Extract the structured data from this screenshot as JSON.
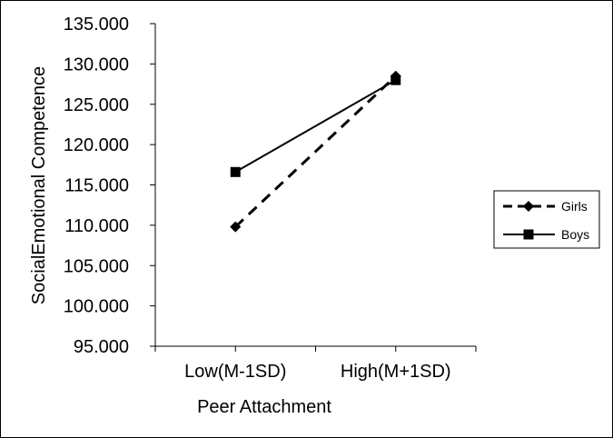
{
  "chart_data": {
    "type": "line",
    "categories": [
      "Low(M-1SD)",
      "High(M+1SD)"
    ],
    "series": [
      {
        "name": "Girls",
        "values": [
          109.8,
          128.5
        ],
        "line_style": "dashed",
        "marker": "diamond",
        "color": "#000000"
      },
      {
        "name": "Boys",
        "values": [
          116.6,
          128.0
        ],
        "line_style": "solid",
        "marker": "square",
        "color": "#000000"
      }
    ],
    "title": "",
    "xlabel": "Peer Attachment",
    "ylabel": "SocialEmotional Competence",
    "ylim": [
      95,
      135
    ],
    "yticks": [
      "95.000",
      "100.000",
      "105.000",
      "110.000",
      "115.000",
      "120.000",
      "125.000",
      "130.000",
      "135.000"
    ],
    "grid": false,
    "legend_position": "right"
  }
}
